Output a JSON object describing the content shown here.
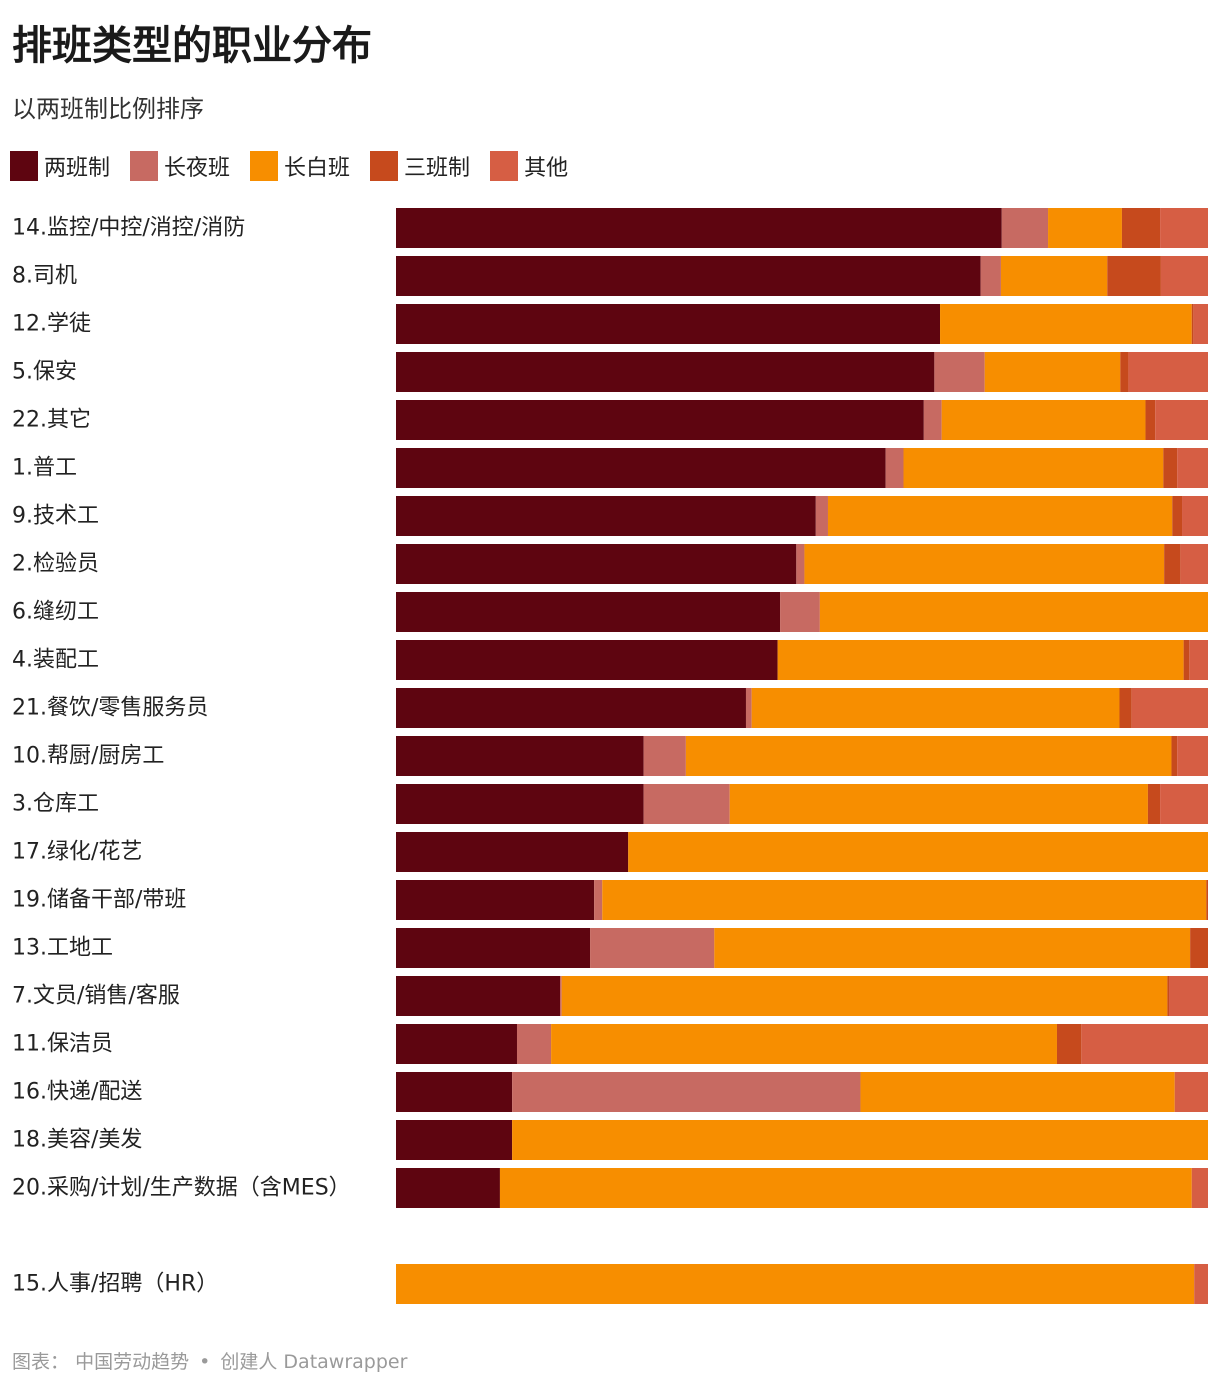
{
  "title": "排班类型的职业分布",
  "subtitle": "以两班制比例排序",
  "footer": {
    "label": "图表：",
    "source": "中国劳动趋势",
    "separator": "•",
    "tool": "创建人 Datawrapper"
  },
  "colors": {
    "两班制": "#5e0510",
    "长夜班": "#c76a62",
    "长白班": "#f78e00",
    "三班制": "#c64a1d",
    "其他": "#d65e44"
  },
  "chart_data": {
    "type": "bar",
    "orientation": "horizontal",
    "stacked": "100%",
    "legend_position": "top",
    "series": [
      {
        "name": "两班制",
        "values": [
          74.6,
          72.0,
          67.0,
          66.3,
          65.0,
          60.3,
          51.7,
          49.3,
          47.3,
          47.0,
          43.1,
          30.5,
          30.5,
          28.6,
          24.4,
          23.9,
          20.2,
          14.9,
          14.3,
          14.3,
          12.8,
          0
        ]
      },
      {
        "name": "长夜班",
        "values": [
          5.7,
          2.5,
          0,
          6.2,
          2.2,
          2.2,
          1.5,
          1.0,
          4.9,
          0,
          0.7,
          5.2,
          10.6,
          0,
          1.0,
          15.3,
          0.2,
          4.2,
          42.9,
          0,
          0,
          0
        ]
      },
      {
        "name": "长白班",
        "values": [
          9.1,
          13.1,
          31.0,
          16.7,
          25.1,
          32.0,
          42.4,
          44.3,
          47.8,
          50.0,
          45.3,
          59.8,
          51.5,
          71.4,
          74.4,
          58.6,
          74.6,
          62.3,
          38.7,
          85.7,
          85.2,
          98.3
        ]
      },
      {
        "name": "三班制",
        "values": [
          4.7,
          6.6,
          0.2,
          1.0,
          1.2,
          1.7,
          1.2,
          2.0,
          0,
          0.7,
          1.5,
          0.7,
          1.5,
          0,
          0.2,
          2.2,
          0.2,
          3.0,
          0,
          0,
          0,
          0
        ]
      },
      {
        "name": "其他",
        "values": [
          5.9,
          5.8,
          1.8,
          9.8,
          6.5,
          3.8,
          3.2,
          3.4,
          0,
          2.3,
          9.4,
          3.8,
          5.9,
          0,
          0,
          0,
          4.8,
          15.6,
          4.1,
          0,
          2.0,
          1.7
        ]
      }
    ],
    "categories": [
      "14.监控/中控/消控/消防",
      "8.司机",
      "12.学徒",
      "5.保安",
      "22.其它",
      "1.普工",
      "9.技术工",
      "2.检验员",
      "6.缝纫工",
      "4.装配工",
      "21.餐饮/零售服务员",
      "10.帮厨/厨房工",
      "3.仓库工",
      "17.绿化/花艺",
      "19.储备干部/带班",
      "13.工地工",
      "7.文员/销售/客服",
      "11.保洁员",
      "16.快递/配送",
      "18.美容/美发",
      "20.采购/计划/生产数据（含MES）",
      "15.人事/招聘（HR）"
    ],
    "xlim": [
      0,
      100
    ]
  }
}
